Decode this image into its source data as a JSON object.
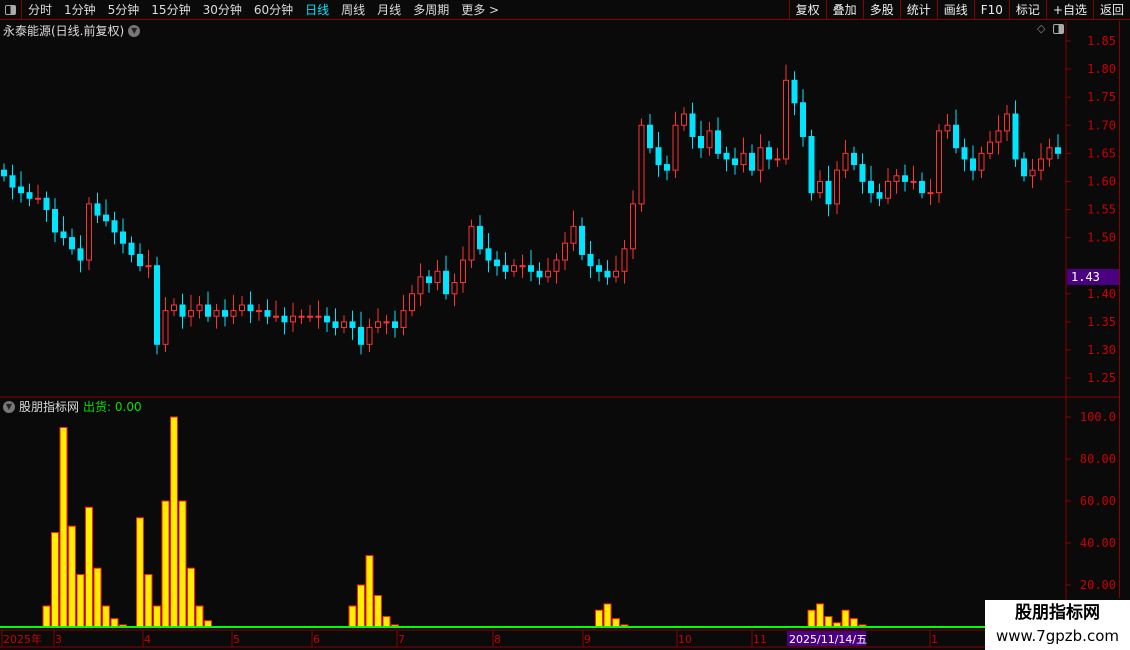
{
  "toolbar": {
    "periods": [
      "分时",
      "1分钟",
      "5分钟",
      "15分钟",
      "30分钟",
      "60分钟",
      "日线",
      "周线",
      "月线",
      "多周期",
      "更多 >"
    ],
    "active_period": "日线",
    "right_buttons": [
      "复权",
      "叠加",
      "多股",
      "统计",
      "画线",
      "F10",
      "标记",
      "+自选",
      "返回"
    ]
  },
  "stock_title": "永泰能源(日线.前复权)",
  "indicator": {
    "name": "股朋指标网",
    "label": "出货: 0.00"
  },
  "colors": {
    "up": "#ff3333",
    "down": "#00e5ff",
    "axis": "#8b0000",
    "axis_text": "#cc0000",
    "bar_fill": "#ffee00",
    "bar_edge": "#ff2200",
    "baseline": "#00ff00",
    "price_tag": "#4b0082"
  },
  "chart_data": {
    "type": "candlestick",
    "price_axis": {
      "ticks": [
        "1.85",
        "1.80",
        "1.75",
        "1.70",
        "1.65",
        "1.60",
        "1.55",
        "1.50",
        "1.40",
        "1.35",
        "1.30",
        "1.25"
      ],
      "range": [
        1.25,
        1.85
      ],
      "current": "1.43"
    },
    "closes": [
      1.61,
      1.59,
      1.58,
      1.57,
      1.57,
      1.55,
      1.51,
      1.5,
      1.48,
      1.46,
      1.56,
      1.54,
      1.53,
      1.51,
      1.49,
      1.47,
      1.45,
      1.45,
      1.31,
      1.37,
      1.38,
      1.36,
      1.37,
      1.38,
      1.36,
      1.37,
      1.36,
      1.37,
      1.38,
      1.37,
      1.37,
      1.36,
      1.36,
      1.35,
      1.36,
      1.36,
      1.36,
      1.36,
      1.35,
      1.34,
      1.35,
      1.34,
      1.31,
      1.34,
      1.35,
      1.35,
      1.34,
      1.37,
      1.4,
      1.43,
      1.42,
      1.44,
      1.4,
      1.42,
      1.46,
      1.52,
      1.48,
      1.46,
      1.45,
      1.44,
      1.45,
      1.45,
      1.44,
      1.43,
      1.44,
      1.46,
      1.49,
      1.52,
      1.47,
      1.45,
      1.44,
      1.43,
      1.44,
      1.48,
      1.56,
      1.7,
      1.66,
      1.63,
      1.62,
      1.7,
      1.72,
      1.68,
      1.66,
      1.69,
      1.65,
      1.64,
      1.63,
      1.65,
      1.62,
      1.66,
      1.64,
      1.64,
      1.78,
      1.74,
      1.68,
      1.58,
      1.6,
      1.56,
      1.62,
      1.65,
      1.63,
      1.6,
      1.58,
      1.57,
      1.6,
      1.61,
      1.6,
      1.6,
      1.58,
      1.58,
      1.69,
      1.7,
      1.66,
      1.64,
      1.62,
      1.65,
      1.67,
      1.69,
      1.72,
      1.64,
      1.61,
      1.62,
      1.64,
      1.66,
      1.65
    ],
    "indicator_axis": {
      "ticks": [
        "100.0",
        "80.00",
        "60.00",
        "40.00",
        "20.00"
      ],
      "range": [
        0,
        100
      ]
    },
    "indicator_values": {
      "5": 10,
      "6": 45,
      "7": 95,
      "8": 48,
      "9": 25,
      "10": 57,
      "11": 28,
      "12": 10,
      "13": 4,
      "14": 1,
      "16": 52,
      "17": 25,
      "18": 10,
      "19": 60,
      "20": 100,
      "21": 60,
      "22": 28,
      "23": 10,
      "24": 3,
      "41": 10,
      "42": 20,
      "43": 34,
      "44": 15,
      "45": 5,
      "46": 1,
      "70": 8,
      "71": 11,
      "72": 4,
      "73": 1,
      "95": 8,
      "96": 11,
      "97": 5,
      "98": 2,
      "99": 8,
      "100": 4,
      "101": 1
    },
    "x_labels": [
      "2025年",
      "3",
      "4",
      "5",
      "6",
      "7",
      "8",
      "9",
      "10",
      "11",
      "2025/11/14/五",
      "1"
    ]
  },
  "watermark": {
    "title": "股朋指标网",
    "url": "www.7gpzb.com"
  }
}
